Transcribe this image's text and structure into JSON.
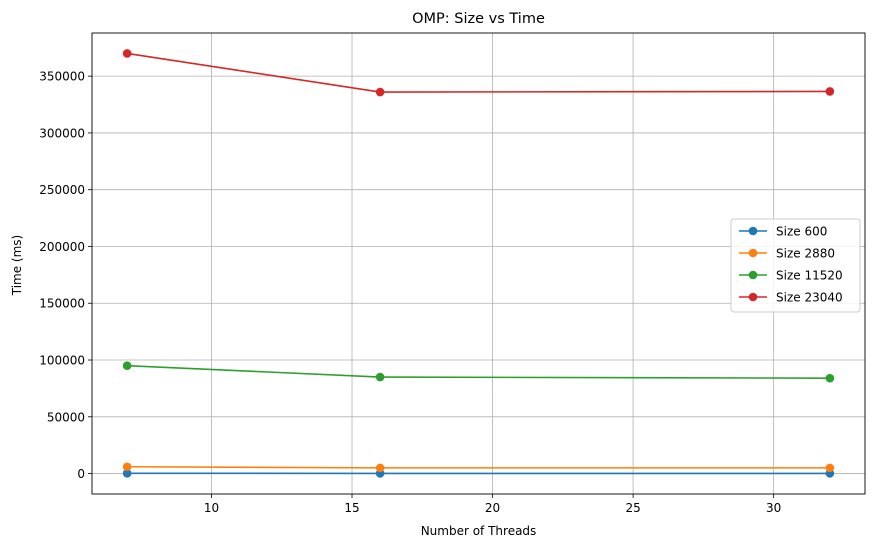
{
  "chart_data": {
    "type": "line",
    "title": "OMP: Size vs Time",
    "xlabel": "Number of Threads",
    "ylabel": "Time (ms)",
    "xlim": [
      5.75,
      33.25
    ],
    "ylim": [
      -18000,
      388000
    ],
    "xticks": [
      10,
      15,
      20,
      25,
      30
    ],
    "yticks": [
      0,
      50000,
      100000,
      150000,
      200000,
      250000,
      300000,
      350000
    ],
    "grid": true,
    "legend_position": "center-right",
    "x": [
      7,
      16,
      32
    ],
    "series": [
      {
        "name": "Size 600",
        "color": "#1f77b4",
        "values": [
          200,
          150,
          150
        ]
      },
      {
        "name": "Size 2880",
        "color": "#ff7f0e",
        "values": [
          6000,
          5000,
          5000
        ]
      },
      {
        "name": "Size 11520",
        "color": "#2ca02c",
        "values": [
          95000,
          85000,
          84000
        ]
      },
      {
        "name": "Size 23040",
        "color": "#d62728",
        "values": [
          370000,
          336000,
          336500
        ]
      }
    ]
  }
}
